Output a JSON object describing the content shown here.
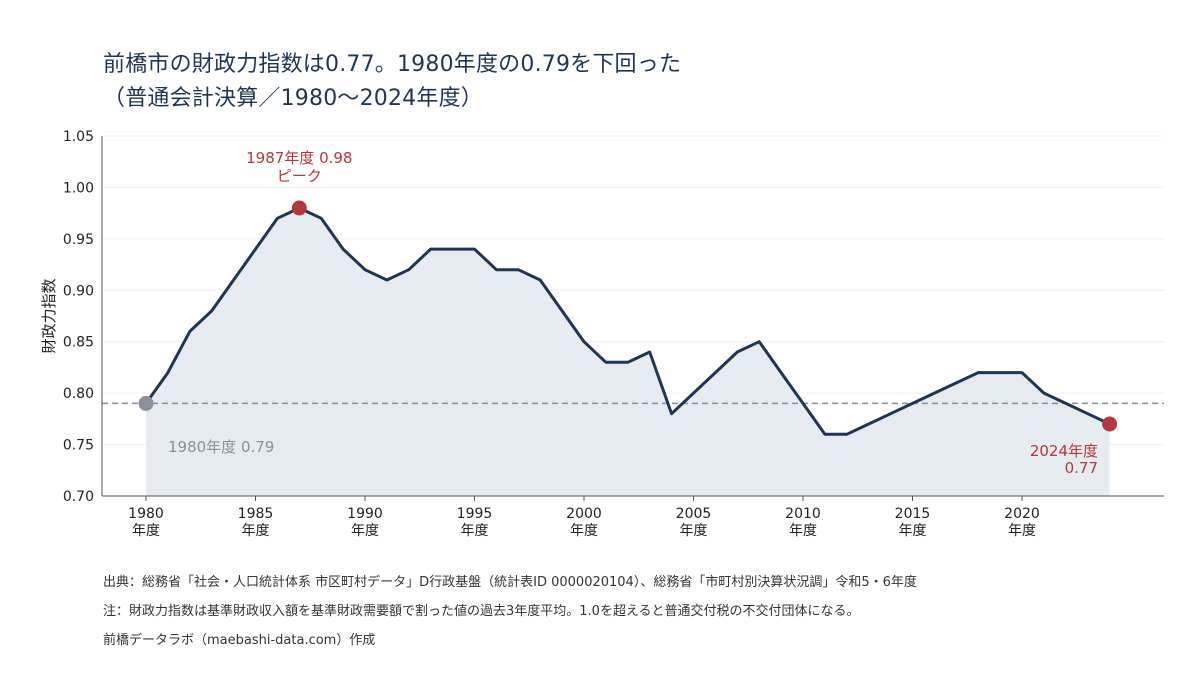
{
  "title_line1": "前橋市の財政力指数は0.77。1980年度の0.79を下回った",
  "title_line2": "（普通会計決算／1980～2024年度）",
  "notes": {
    "source": "出典：総務省「社会・人口統計体系 市区町村データ」D行政基盤（統計表ID 0000020104）、総務省「市町村別決算状況調」令和5・6年度",
    "note": "注：財政力指数は基準財政収入額を基準財政需要額で割った値の過去3年度平均。1.0を超えると普通交付税の不交付団体になる。",
    "credit": "前橋データラボ（maebashi-data.com）作成"
  },
  "colors": {
    "line": "#1f3556",
    "fill": "#e6ebf2",
    "highlight": "#b5373a",
    "baseline": "#8a8f9c",
    "refline": "#8a8f9c"
  },
  "chart_data": {
    "type": "area",
    "ylabel": "財政力指数",
    "xlabel": "",
    "ylim": [
      0.7,
      1.05
    ],
    "yticks": [
      "0.70",
      "0.75",
      "0.80",
      "0.85",
      "0.90",
      "0.95",
      "1.00",
      "1.05"
    ],
    "xticks": [
      {
        "year": 1980,
        "label1": "1980",
        "label2": "年度"
      },
      {
        "year": 1985,
        "label1": "1985",
        "label2": "年度"
      },
      {
        "year": 1990,
        "label1": "1990",
        "label2": "年度"
      },
      {
        "year": 1995,
        "label1": "1995",
        "label2": "年度"
      },
      {
        "year": 2000,
        "label1": "2000",
        "label2": "年度"
      },
      {
        "year": 2005,
        "label1": "2005",
        "label2": "年度"
      },
      {
        "year": 2010,
        "label1": "2010",
        "label2": "年度"
      },
      {
        "year": 2015,
        "label1": "2015",
        "label2": "年度"
      },
      {
        "year": 2020,
        "label1": "2020",
        "label2": "年度"
      }
    ],
    "grid": true,
    "x": [
      1980,
      1981,
      1982,
      1983,
      1984,
      1985,
      1986,
      1987,
      1988,
      1989,
      1990,
      1991,
      1992,
      1993,
      1994,
      1995,
      1996,
      1997,
      1998,
      1999,
      2000,
      2001,
      2002,
      2003,
      2004,
      2005,
      2006,
      2007,
      2008,
      2009,
      2010,
      2011,
      2012,
      2013,
      2014,
      2015,
      2016,
      2017,
      2018,
      2019,
      2020,
      2021,
      2022,
      2023,
      2024
    ],
    "values": [
      0.79,
      0.82,
      0.86,
      0.88,
      0.91,
      0.94,
      0.97,
      0.98,
      0.97,
      0.94,
      0.92,
      0.91,
      0.92,
      0.94,
      0.94,
      0.94,
      0.92,
      0.92,
      0.91,
      0.88,
      0.85,
      0.83,
      0.83,
      0.84,
      0.78,
      0.8,
      0.82,
      0.84,
      0.85,
      0.82,
      0.79,
      0.76,
      0.76,
      0.77,
      0.78,
      0.79,
      0.8,
      0.81,
      0.82,
      0.82,
      0.82,
      0.8,
      0.79,
      0.78,
      0.77
    ],
    "reference_value": 0.79,
    "annotations": [
      {
        "id": "peak",
        "year": 1987,
        "value": 0.98,
        "line1": "1987年度 0.98",
        "line2": "ピーク"
      },
      {
        "id": "start",
        "year": 1980,
        "value": 0.79,
        "line1": "1980年度 0.79"
      },
      {
        "id": "latest",
        "year": 2024,
        "value": 0.77,
        "line1": "2024年度",
        "line2": "0.77"
      }
    ]
  }
}
